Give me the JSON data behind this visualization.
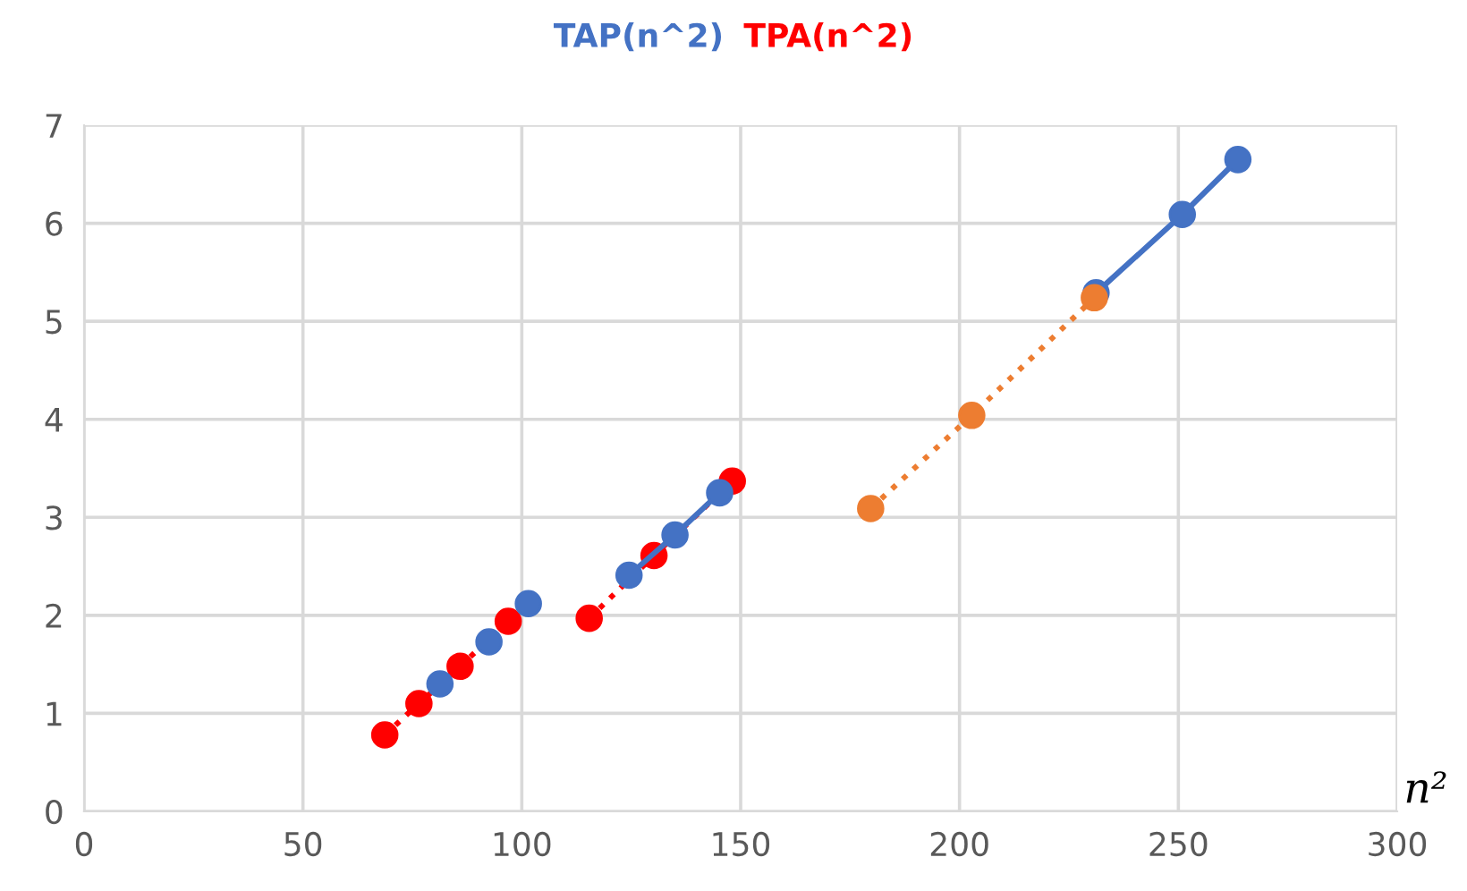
{
  "chart_data": {
    "type": "scatter",
    "xlabel": "n²",
    "xlim": [
      0,
      300
    ],
    "xticks": [
      0,
      50,
      100,
      150,
      200,
      250,
      300
    ],
    "ylim": [
      0,
      7
    ],
    "yticks": [
      0,
      1,
      2,
      3,
      4,
      5,
      6,
      7
    ],
    "grid": true,
    "legend": "top",
    "marker": "circle",
    "series": [
      {
        "type": "line",
        "line_style": "dotted",
        "color": "#ff0000",
        "name": "TPA(n^2)",
        "x": [
          68.7,
          76.5,
          85.9,
          96.9,
          null,
          115.4,
          130.2,
          148.1
        ],
        "values": [
          0.78,
          1.1,
          1.48,
          1.94,
          null,
          1.97,
          2.61,
          3.37
        ]
      },
      {
        "color": "#4472c4",
        "name": "TAP(n^2)",
        "x": [
          81.3,
          92.5,
          101.5
        ],
        "values": [
          1.3,
          1.73,
          2.12
        ]
      },
      {
        "type": "line",
        "line_style": "solid",
        "color": "#4472c4",
        "x": [
          124.5,
          135.0,
          145.2,
          null,
          231.2,
          250.9,
          263.6
        ],
        "values": [
          2.41,
          2.82,
          3.25,
          null,
          5.29,
          6.09,
          6.65
        ]
      },
      {
        "type": "line",
        "line_style": "dotted",
        "color": "#ed7d31",
        "x": [
          179.7,
          202.8,
          230.8
        ],
        "values": [
          3.09,
          4.04,
          5.24
        ]
      }
    ]
  }
}
